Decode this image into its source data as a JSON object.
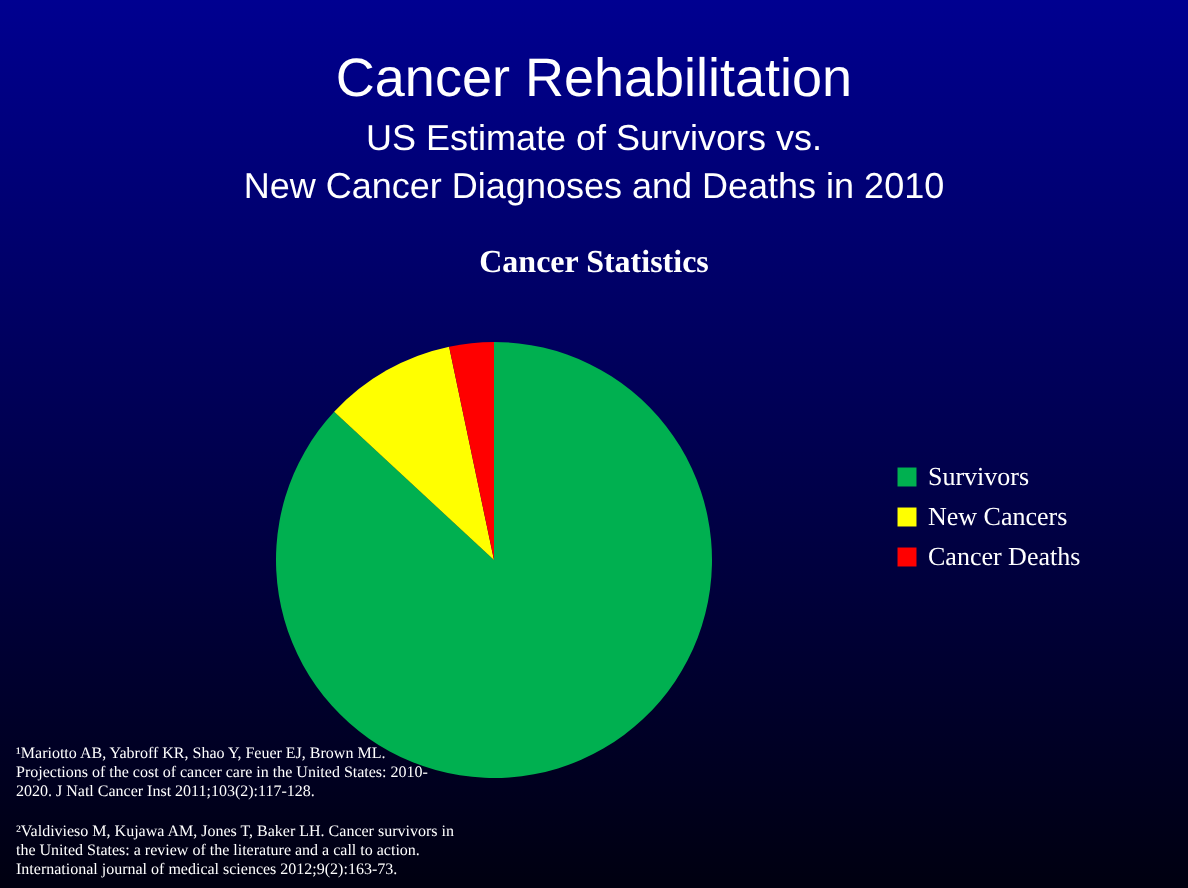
{
  "chart_data": {
    "type": "pie",
    "title": "Cancer Rehabilitation",
    "subtitle": "US Estimate of Survivors vs.\nNew Cancer Diagnoses and Deaths in 2010",
    "categories": [
      "Survivors",
      "New Cancers",
      "Cancer Deaths"
    ],
    "values": [
      86.9,
      9.8,
      3.3
    ],
    "colors": [
      "#00b050",
      "#ffff00",
      "#ff0000"
    ],
    "legend": "right",
    "annotations": [
      "Cancer Statistics",
      "¹Mariotto AB, Yabroff KR, Shao Y, Feuer EJ, Brown ML.\nProjections of the cost of cancer care in the United States: 2010-\n2020. J Natl Cancer Inst 2011;103(2):117-128.",
      "²Valdivieso M, Kujawa AM, Jones T, Baker LH. Cancer survivors in\nthe United States: a review of the literature and a call to action.\nInternational journal of medical sciences 2012;9(2):163-73."
    ]
  }
}
